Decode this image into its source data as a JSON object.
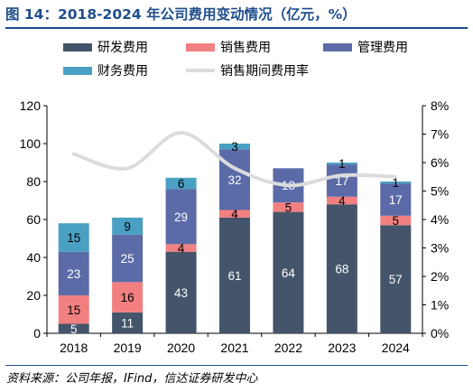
{
  "title": "图 14：2018-2024 年公司费用变动情况（亿元，%）",
  "source": "资料来源：公司年报，IFind，信达证券研发中心",
  "chart_data": {
    "type": "bar",
    "stacked": true,
    "categories": [
      "2018",
      "2019",
      "2020",
      "2021",
      "2022",
      "2023",
      "2024"
    ],
    "series": [
      {
        "name": "研发费用",
        "color": "#44546a",
        "values": [
          5,
          11,
          43,
          61,
          64,
          68,
          57
        ]
      },
      {
        "name": "销售费用",
        "color": "#f28080",
        "values": [
          15,
          16,
          4,
          4,
          5,
          4,
          5
        ]
      },
      {
        "name": "管理费用",
        "color": "#5b6ba8",
        "values": [
          23,
          25,
          29,
          32,
          18,
          17,
          17
        ]
      },
      {
        "name": "财务费用",
        "color": "#4aa0c2",
        "values": [
          15,
          9,
          6,
          3,
          0,
          1,
          1
        ]
      }
    ],
    "line_series": {
      "name": "销售期间费用率",
      "color": "#dcdcdc",
      "axis": "right",
      "values": [
        0.063,
        0.058,
        0.0705,
        0.058,
        0.052,
        0.0555,
        0.055
      ]
    },
    "data_labels": [
      [
        "5",
        "11",
        "43",
        "61",
        "64",
        "68",
        "57"
      ],
      [
        "15",
        "16",
        "4",
        "4",
        "5",
        "4",
        "5"
      ],
      [
        "23",
        "25",
        "29",
        "32",
        "18",
        "17",
        "17"
      ],
      [
        "15",
        "9",
        "6",
        "3",
        "",
        "1",
        "1"
      ]
    ],
    "y_left": {
      "min": 0,
      "max": 120,
      "ticks": [
        "0",
        "20",
        "40",
        "60",
        "80",
        "100",
        "120"
      ]
    },
    "y_right": {
      "min": 0,
      "max": 0.08,
      "ticks": [
        "0%",
        "1%",
        "2%",
        "3%",
        "4%",
        "5%",
        "6%",
        "7%",
        "8%"
      ]
    },
    "legend": [
      "研发费用",
      "销售费用",
      "管理费用",
      "财务费用",
      "销售期间费用率"
    ],
    "legend_position": "top",
    "grid": false
  }
}
